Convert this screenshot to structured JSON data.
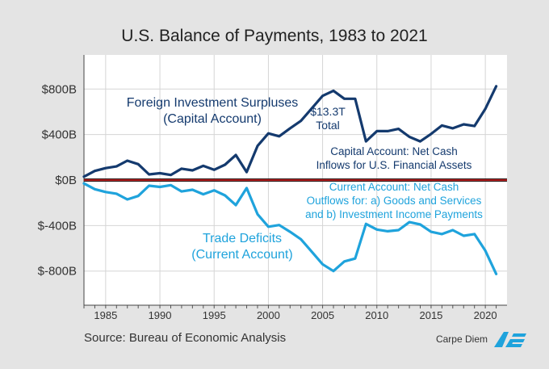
{
  "title": "U.S. Balance of Payments, 1983 to 2021",
  "source": "Source: Bureau of Economic Analysis",
  "brand": {
    "text": "Carpe Diem",
    "logo": "AEI"
  },
  "colors": {
    "capital": "#143a6e",
    "current": "#1fa3dc",
    "zero_line": "#b01d1d",
    "background": "#e4e4e4",
    "plot_bg": "#ffffff",
    "grid": "#d5d5d5"
  },
  "annotations": {
    "capital_label": [
      "Foreign Investment Surpluses",
      "(Capital Account)"
    ],
    "total_label": [
      "$13.3T",
      "Total"
    ],
    "capital_note": [
      "Capital Account: Net Cash",
      "Inflows for U.S. Financial Assets"
    ],
    "current_note": [
      "Current Account: Net Cash",
      "Outflows for: a) Goods and Services",
      "and b) Investment Income Payments"
    ],
    "current_label": [
      "Trade Deficits",
      "(Current Account)"
    ]
  },
  "chart_data": {
    "type": "line",
    "title": "U.S. Balance of Payments, 1983 to 2021",
    "xlim": [
      1983,
      2022
    ],
    "ylim": [
      -1100,
      1100
    ],
    "xticks": [
      1985,
      1990,
      1995,
      2000,
      2005,
      2010,
      2015,
      2020
    ],
    "xtick_labels": [
      "1985",
      "1990",
      "1995",
      "2000",
      "2005",
      "2010",
      "2015",
      "2020"
    ],
    "yticks": [
      800,
      400,
      0,
      -400,
      -800
    ],
    "ytick_labels": [
      "$800B",
      "$400B",
      "$0B",
      "$-400B",
      "$-800B"
    ],
    "grid": true,
    "x": [
      1983,
      1984,
      1985,
      1986,
      1987,
      1988,
      1989,
      1990,
      1991,
      1992,
      1993,
      1994,
      1995,
      1996,
      1997,
      1998,
      1999,
      2000,
      2001,
      2002,
      2003,
      2004,
      2005,
      2006,
      2007,
      2008,
      2009,
      2010,
      2011,
      2012,
      2013,
      2014,
      2015,
      2016,
      2017,
      2018,
      2019,
      2020,
      2021
    ],
    "series": [
      {
        "key": "capital",
        "values": [
          30,
          80,
          105,
          120,
          170,
          140,
          50,
          60,
          45,
          100,
          85,
          125,
          90,
          135,
          220,
          70,
          300,
          410,
          385,
          455,
          520,
          630,
          740,
          785,
          715,
          715,
          340,
          430,
          430,
          450,
          380,
          340,
          405,
          480,
          455,
          490,
          475,
          625,
          825
        ]
      },
      {
        "key": "current",
        "values": [
          -30,
          -80,
          -105,
          -120,
          -170,
          -140,
          -50,
          -60,
          -45,
          -100,
          -85,
          -125,
          -90,
          -135,
          -220,
          -70,
          -300,
          -410,
          -395,
          -455,
          -520,
          -630,
          -740,
          -800,
          -715,
          -690,
          -385,
          -435,
          -450,
          -440,
          -370,
          -390,
          -455,
          -475,
          -440,
          -490,
          -475,
          -620,
          -825
        ]
      }
    ]
  }
}
